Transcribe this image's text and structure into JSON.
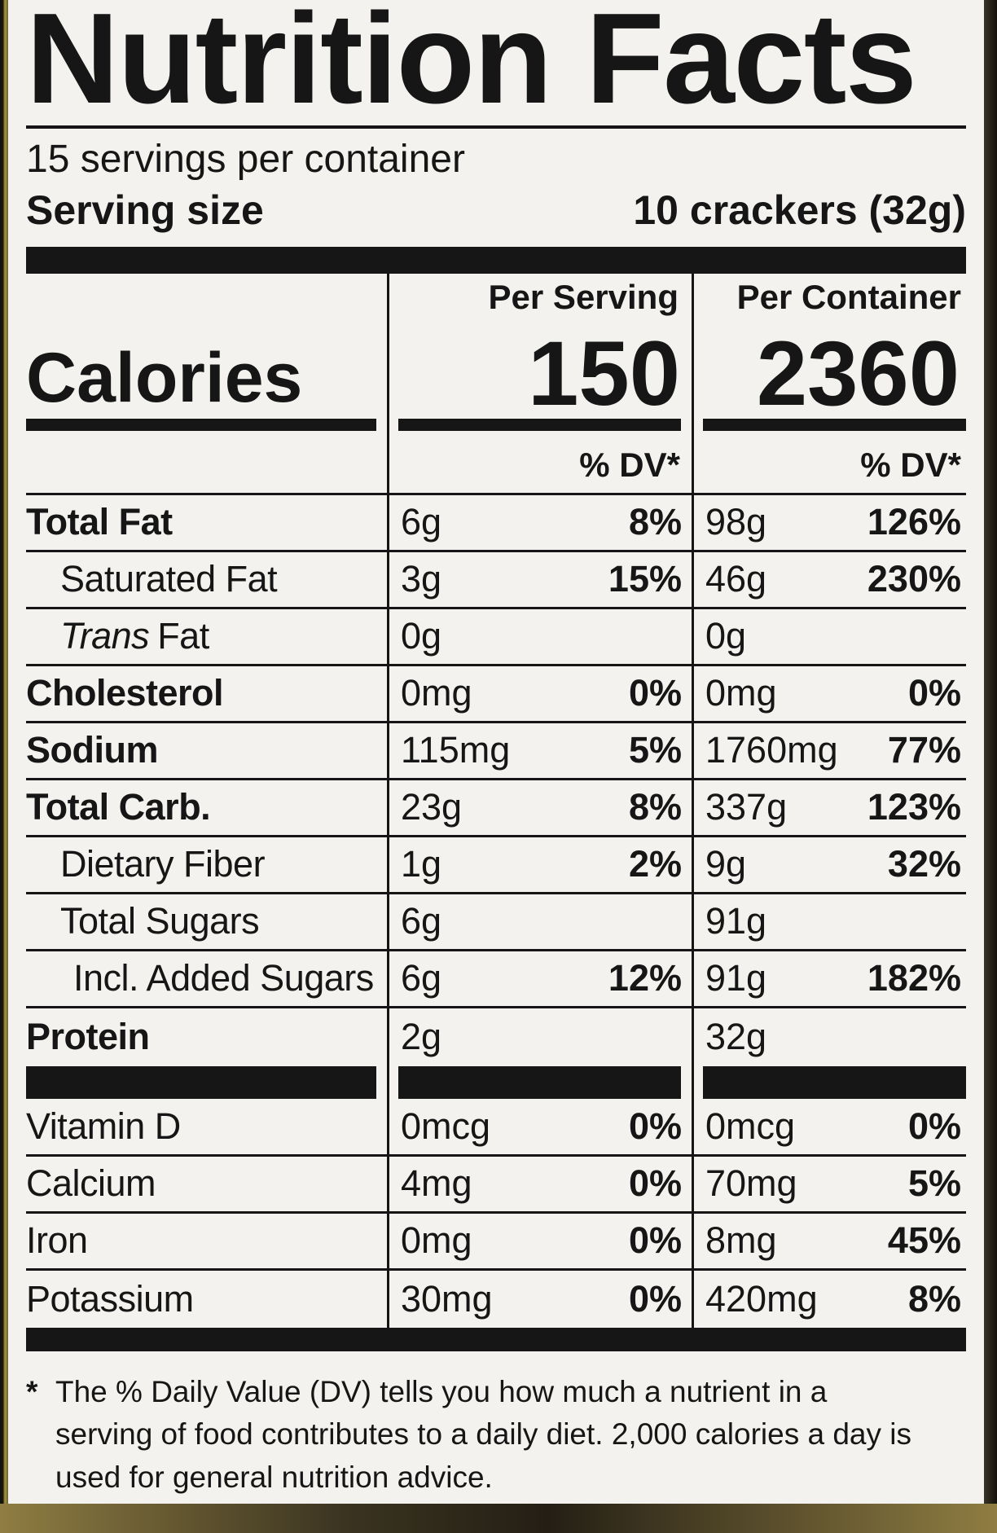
{
  "label": {
    "title": "Nutrition Facts",
    "servings_per_container": "15 servings per container",
    "serving_size_label": "Serving size",
    "serving_size_value": "10 crackers (32g)",
    "calories": {
      "label": "Calories",
      "per_serving_header": "Per Serving",
      "per_container_header": "Per Container",
      "per_serving": "150",
      "per_container": "2360",
      "dv_header": "% DV*"
    },
    "rows": [
      {
        "name": "Total Fat",
        "serving_amount": "6g",
        "serving_dv": "8%",
        "container_amount": "98g",
        "container_dv": "126%"
      },
      {
        "name": "Saturated Fat",
        "serving_amount": "3g",
        "serving_dv": "15%",
        "container_amount": "46g",
        "container_dv": "230%"
      },
      {
        "prefix_italic": "Trans",
        "name": "Fat",
        "serving_amount": "0g",
        "serving_dv": "",
        "container_amount": "0g",
        "container_dv": ""
      },
      {
        "name": "Cholesterol",
        "serving_amount": "0mg",
        "serving_dv": "0%",
        "container_amount": "0mg",
        "container_dv": "0%"
      },
      {
        "name": "Sodium",
        "serving_amount": "115mg",
        "serving_dv": "5%",
        "container_amount": "1760mg",
        "container_dv": "77%"
      },
      {
        "name": "Total Carb.",
        "serving_amount": "23g",
        "serving_dv": "8%",
        "container_amount": "337g",
        "container_dv": "123%"
      },
      {
        "name": "Dietary Fiber",
        "serving_amount": "1g",
        "serving_dv": "2%",
        "container_amount": "9g",
        "container_dv": "32%"
      },
      {
        "name": "Total Sugars",
        "serving_amount": "6g",
        "serving_dv": "",
        "container_amount": "91g",
        "container_dv": ""
      },
      {
        "name": "Incl. Added Sugars",
        "serving_amount": "6g",
        "serving_dv": "12%",
        "container_amount": "91g",
        "container_dv": "182%"
      },
      {
        "name": "Protein",
        "serving_amount": "2g",
        "serving_dv": "",
        "container_amount": "32g",
        "container_dv": ""
      }
    ],
    "vitamins": [
      {
        "name": "Vitamin D",
        "serving_amount": "0mcg",
        "serving_dv": "0%",
        "container_amount": "0mcg",
        "container_dv": "0%"
      },
      {
        "name": "Calcium",
        "serving_amount": "4mg",
        "serving_dv": "0%",
        "container_amount": "70mg",
        "container_dv": "5%"
      },
      {
        "name": "Iron",
        "serving_amount": "0mg",
        "serving_dv": "0%",
        "container_amount": "8mg",
        "container_dv": "45%"
      },
      {
        "name": "Potassium",
        "serving_amount": "30mg",
        "serving_dv": "0%",
        "container_amount": "420mg",
        "container_dv": "8%"
      }
    ],
    "footnote_marker": "*",
    "footnote": "The % Daily Value (DV) tells you how much a nutrient in a serving of food contributes to a daily diet. 2,000 calories a day is used for general nutrition advice.",
    "colors": {
      "ink": "#161616",
      "paper": "#f3f2ee"
    }
  }
}
